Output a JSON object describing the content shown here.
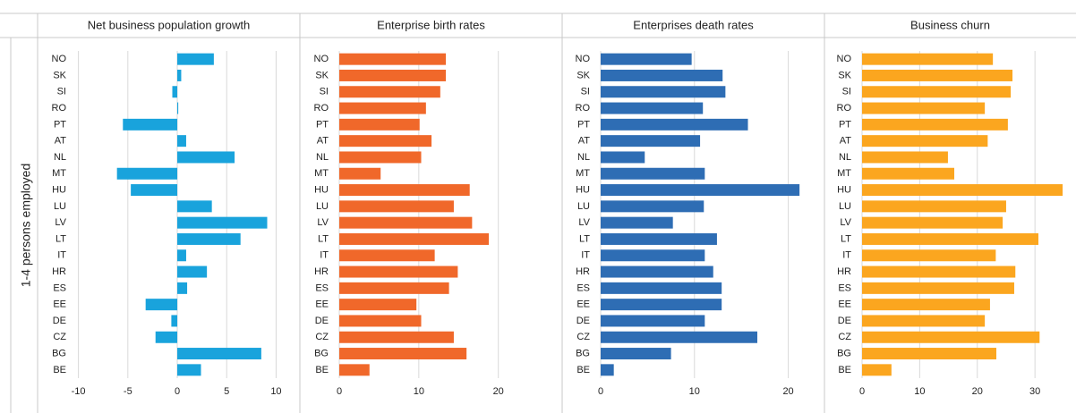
{
  "row_label": "1-4 persons employed",
  "chart_data": [
    {
      "type": "bar",
      "title": "Net business population growth",
      "color": "#19a3dc",
      "categories": [
        "NO",
        "SK",
        "SI",
        "RO",
        "PT",
        "AT",
        "NL",
        "MT",
        "HU",
        "LU",
        "LV",
        "LT",
        "IT",
        "HR",
        "ES",
        "EE",
        "DE",
        "CZ",
        "BG",
        "BE"
      ],
      "values": [
        3.7,
        0.4,
        -0.5,
        0.1,
        -5.5,
        0.9,
        5.8,
        -6.1,
        -4.7,
        3.5,
        9.1,
        6.4,
        0.9,
        3.0,
        1.0,
        -3.2,
        -0.6,
        -2.2,
        8.5,
        2.4
      ],
      "xlim": [
        -12.5,
        11.5
      ],
      "xticks": [
        -10,
        -5,
        0,
        5,
        10
      ],
      "grid": true
    },
    {
      "type": "bar",
      "title": "Enterprise birth rates",
      "color": "#f0682a",
      "categories": [
        "NO",
        "SK",
        "SI",
        "RO",
        "PT",
        "AT",
        "NL",
        "MT",
        "HU",
        "LU",
        "LV",
        "LT",
        "IT",
        "HR",
        "ES",
        "EE",
        "DE",
        "CZ",
        "BG",
        "BE"
      ],
      "values": [
        13.4,
        13.4,
        12.7,
        10.9,
        10.1,
        11.6,
        10.3,
        5.2,
        16.4,
        14.4,
        16.7,
        18.8,
        12.0,
        14.9,
        13.8,
        9.7,
        10.3,
        14.4,
        16.0,
        3.8
      ],
      "xlim": [
        0,
        26
      ],
      "xticks": [
        0,
        10,
        20
      ],
      "grid": true
    },
    {
      "type": "bar",
      "title": "Enterprises death rates",
      "color": "#2e6db4",
      "categories": [
        "NO",
        "SK",
        "SI",
        "RO",
        "PT",
        "AT",
        "NL",
        "MT",
        "HU",
        "LU",
        "LV",
        "LT",
        "IT",
        "HR",
        "ES",
        "EE",
        "DE",
        "CZ",
        "BG",
        "BE"
      ],
      "values": [
        9.7,
        13.0,
        13.3,
        10.9,
        15.7,
        10.6,
        4.7,
        11.1,
        21.2,
        11.0,
        7.7,
        12.4,
        11.1,
        12.0,
        12.9,
        12.9,
        11.1,
        16.7,
        7.5,
        1.4
      ],
      "xlim": [
        0,
        23
      ],
      "xticks": [
        0,
        10,
        20
      ],
      "grid": true
    },
    {
      "type": "bar",
      "title": "Business churn",
      "color": "#fba61f",
      "categories": [
        "NO",
        "SK",
        "SI",
        "RO",
        "PT",
        "AT",
        "NL",
        "MT",
        "HU",
        "LU",
        "LV",
        "LT",
        "IT",
        "HR",
        "ES",
        "EE",
        "DE",
        "CZ",
        "BG",
        "BE"
      ],
      "values": [
        22.7,
        26.1,
        25.8,
        21.3,
        25.3,
        21.8,
        14.9,
        16.0,
        34.8,
        25.0,
        24.4,
        30.6,
        23.2,
        26.6,
        26.4,
        22.2,
        21.3,
        30.8,
        23.3,
        5.1
      ],
      "xlim": [
        0,
        36.5
      ],
      "xticks": [
        0,
        10,
        20,
        30
      ],
      "grid": true
    }
  ]
}
